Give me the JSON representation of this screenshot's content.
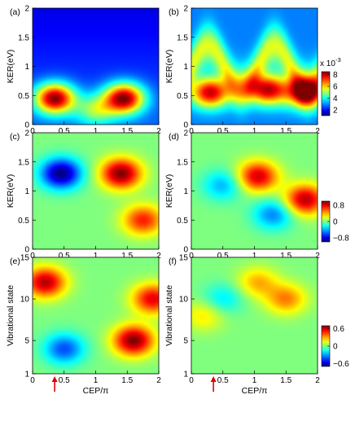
{
  "chart_data": [
    {
      "type": "heatmap",
      "panel_label": "(a)",
      "xlabel": "",
      "ylabel": "KER(eV)",
      "xlim": [
        0,
        2
      ],
      "ylim": [
        0,
        2
      ],
      "x_ticks": [
        "0",
        "0.5",
        "1",
        "1.5",
        "2"
      ],
      "y_ticks": [
        "0",
        "0.5",
        "1",
        "1.5",
        "2"
      ],
      "hotspots": [
        {
          "x": 0.35,
          "y": 0.45,
          "level": 1.0
        },
        {
          "x": 1.45,
          "y": 0.45,
          "level": 1.0
        },
        {
          "x": 1.0,
          "y": 0.25,
          "level": 0.4
        }
      ],
      "colorbar": null
    },
    {
      "type": "heatmap",
      "panel_label": "(b)",
      "xlabel": "",
      "ylabel": "KER(eV)",
      "xlim": [
        0,
        2
      ],
      "ylim": [
        0,
        2
      ],
      "x_ticks": [
        "0",
        "0.5",
        "1",
        "1.5",
        "2"
      ],
      "y_ticks": [
        "0",
        "0.5",
        "1",
        "1.5",
        "2"
      ],
      "hotspots": [
        {
          "x": 0.3,
          "y": 0.55,
          "level": 0.85
        },
        {
          "x": 1.2,
          "y": 0.6,
          "level": 0.85
        },
        {
          "x": 1.8,
          "y": 0.55,
          "level": 0.8
        }
      ],
      "colorbar": {
        "exponent": "x 10",
        "exponent_power": "-3",
        "ticks": [
          "2",
          "4",
          "6",
          "8"
        ],
        "min": 1,
        "max": 8.5
      }
    },
    {
      "type": "heatmap",
      "panel_label": "(c)",
      "xlabel": "",
      "ylabel": "KER(eV)",
      "xlim": [
        0,
        2
      ],
      "ylim": [
        0,
        2
      ],
      "x_ticks": [
        "0",
        "0.5",
        "1",
        "1.5",
        "2"
      ],
      "y_ticks": [
        "0",
        "0.5",
        "1",
        "1.5",
        "2"
      ],
      "hotspots": [
        {
          "x": 1.4,
          "y": 1.3,
          "level": 1.0
        },
        {
          "x": 0.45,
          "y": 1.3,
          "level": -1.0
        },
        {
          "x": 1.75,
          "y": 0.5,
          "level": 0.7
        }
      ],
      "colorbar": null
    },
    {
      "type": "heatmap",
      "panel_label": "(d)",
      "xlabel": "",
      "ylabel": "KER(eV)",
      "xlim": [
        0,
        2
      ],
      "ylim": [
        0,
        2
      ],
      "x_ticks": [
        "0",
        "0.5",
        "1",
        "1.5",
        "2"
      ],
      "y_ticks": [
        "0",
        "0.5",
        "1",
        "1.5",
        "2"
      ],
      "hotspots": [
        {
          "x": 1.05,
          "y": 1.25,
          "level": 0.85
        },
        {
          "x": 1.8,
          "y": 0.85,
          "level": 0.9
        },
        {
          "x": 0.5,
          "y": 1.1,
          "level": -0.4
        },
        {
          "x": 1.3,
          "y": 0.6,
          "level": -0.5
        }
      ],
      "colorbar": {
        "exponent": "",
        "exponent_power": "",
        "ticks": [
          "0.8",
          "0",
          "−0.8"
        ],
        "min": -1,
        "max": 1
      }
    },
    {
      "type": "heatmap",
      "panel_label": "(e)",
      "xlabel": "CEP/π",
      "ylabel": "Vibrational state",
      "xlim": [
        0,
        2
      ],
      "ylim": [
        1,
        15
      ],
      "x_ticks": [
        "0",
        "0.5",
        "1",
        "1.5",
        "2"
      ],
      "y_ticks": [
        "1",
        "5",
        "10",
        "15"
      ],
      "hotspots": [
        {
          "x": 0.2,
          "y": 12,
          "level": 0.9
        },
        {
          "x": 1.6,
          "y": 5,
          "level": 1.0
        },
        {
          "x": 1.9,
          "y": 10,
          "level": 0.8
        },
        {
          "x": 0.5,
          "y": 4,
          "level": -0.6
        }
      ],
      "colorbar": null,
      "marker_arrow_x": 0.35
    },
    {
      "type": "heatmap",
      "panel_label": "(f)",
      "xlabel": "CEP/π",
      "ylabel": "Vibrational state",
      "xlim": [
        0,
        2
      ],
      "ylim": [
        1,
        15
      ],
      "x_ticks": [
        "0",
        "0.5",
        "1",
        "1.5",
        "2"
      ],
      "y_ticks": [
        "1",
        "5",
        "10",
        "15"
      ],
      "hotspots": [
        {
          "x": 1.05,
          "y": 12,
          "level": 0.4
        },
        {
          "x": 1.5,
          "y": 10,
          "level": 0.5
        },
        {
          "x": 0.2,
          "y": 8,
          "level": 0.3
        },
        {
          "x": 0.5,
          "y": 10,
          "level": -0.3
        }
      ],
      "colorbar": {
        "exponent": "",
        "exponent_power": "",
        "ticks": [
          "0.6",
          "0",
          "−0.6"
        ],
        "min": -0.7,
        "max": 0.7
      },
      "marker_arrow_x": 0.35
    }
  ]
}
